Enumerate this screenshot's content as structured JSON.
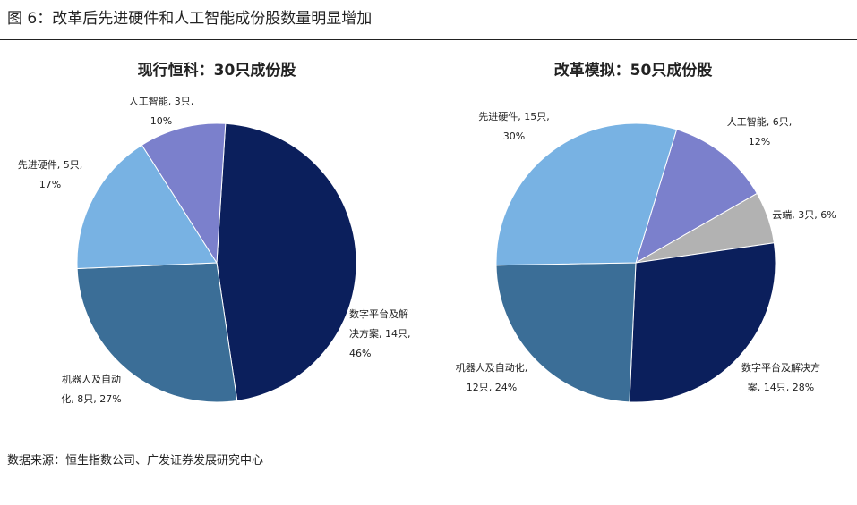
{
  "figure": {
    "title": "图 6：改革后先进硬件和人工智能成份股数量明显增加",
    "source": "数据来源：恒生指数公司、广发证券发展研究中心"
  },
  "chart_data": [
    {
      "type": "pie",
      "title": "现行恒科：30只成份股",
      "slices": [
        {
          "name": "数字平台及解决方案",
          "count": 14,
          "percent": 46,
          "color": "#0b1f5c",
          "label_lines": [
            "数字平台及解",
            "决方案, 14只,",
            "46%"
          ]
        },
        {
          "name": "机器人及自动化",
          "count": 8,
          "percent": 27,
          "color": "#3b6e97",
          "label_lines": [
            "机器人及自动",
            "化, 8只, 27%"
          ]
        },
        {
          "name": "先进硬件",
          "count": 5,
          "percent": 17,
          "color": "#78b2e3",
          "label_lines": [
            "先进硬件, 5只,",
            "17%"
          ]
        },
        {
          "name": "人工智能",
          "count": 3,
          "percent": 10,
          "color": "#7b80cc",
          "label_lines": [
            "人工智能, 3只,",
            "10%"
          ]
        }
      ]
    },
    {
      "type": "pie",
      "title": "改革模拟：50只成份股",
      "slices": [
        {
          "name": "人工智能",
          "count": 6,
          "percent": 12,
          "color": "#7b80cc",
          "label_lines": [
            "人工智能, 6只,",
            "12%"
          ]
        },
        {
          "name": "云端",
          "count": 3,
          "percent": 6,
          "color": "#b2b2b2",
          "label_lines": [
            "云端, 3只, 6%"
          ]
        },
        {
          "name": "数字平台及解决方案",
          "count": 14,
          "percent": 28,
          "color": "#0b1f5c",
          "label_lines": [
            "数字平台及解决方",
            "案, 14只, 28%"
          ]
        },
        {
          "name": "机器人及自动化",
          "count": 12,
          "percent": 24,
          "color": "#3b6e97",
          "label_lines": [
            "机器人及自动化,",
            "12只, 24%"
          ]
        },
        {
          "name": "先进硬件",
          "count": 15,
          "percent": 30,
          "color": "#78b2e3",
          "label_lines": [
            "先进硬件, 15只,",
            "30%"
          ]
        }
      ]
    }
  ]
}
